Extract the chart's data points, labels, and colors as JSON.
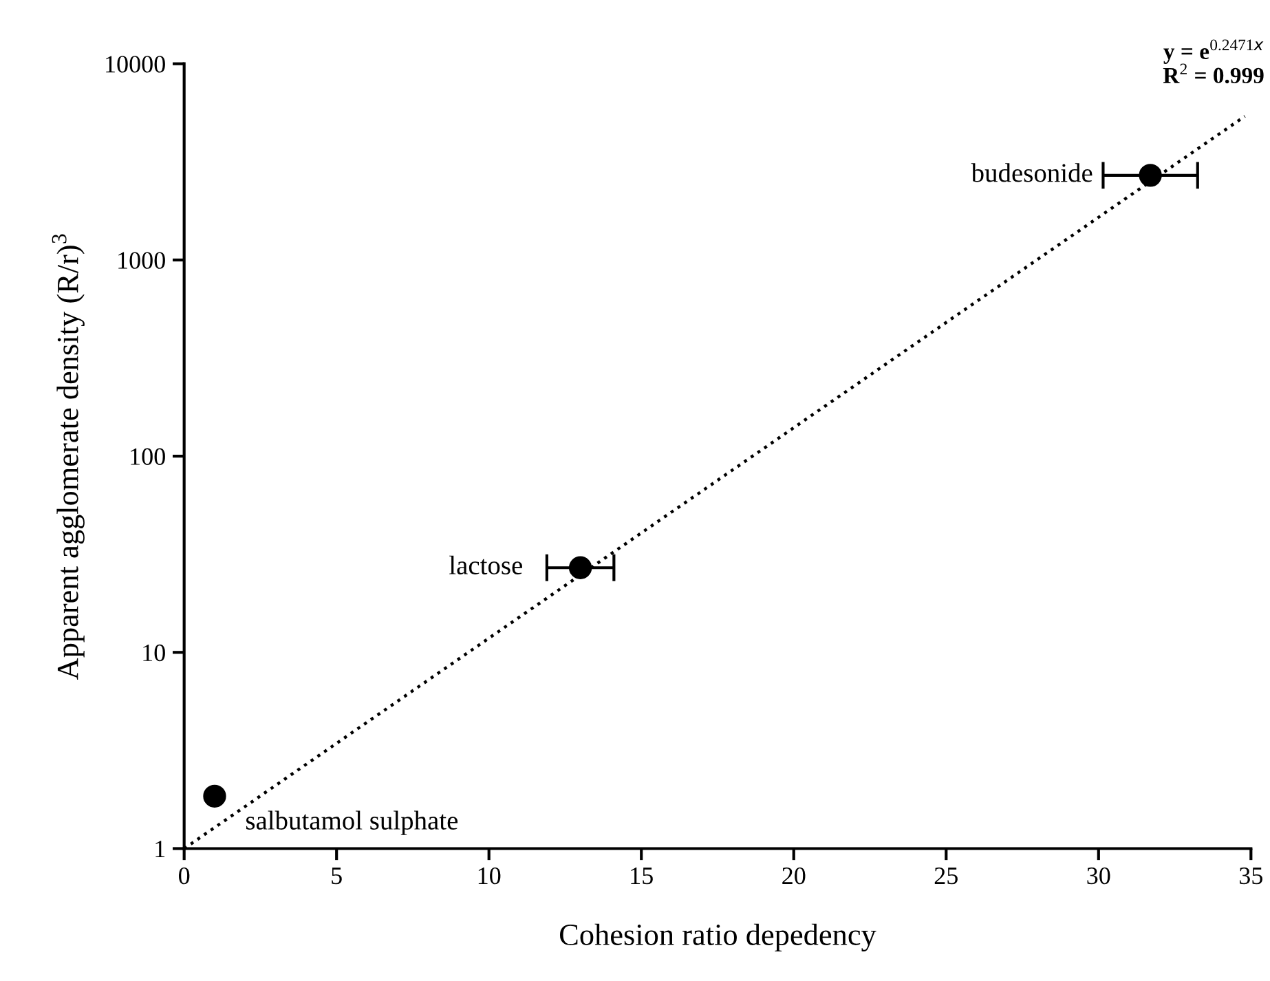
{
  "chart_data": {
    "type": "scatter",
    "xlabel": "Cohesion ratio depedency",
    "ylabel": "Apparent agglomerate density (R/r)$^{3}$",
    "log": "y",
    "xlim": [
      0,
      35
    ],
    "xticks": [
      0,
      5,
      10,
      15,
      20,
      25,
      30,
      35
    ],
    "ylim": [
      1,
      10000
    ],
    "yticks": [
      1,
      10,
      100,
      1000,
      10000
    ],
    "grid": false,
    "legend": false,
    "marker": "circle",
    "series": [
      {
        "color": "#000000",
        "x": [
          1.0,
          13.0,
          31.7
        ],
        "values": [
          1.85,
          27,
          2700
        ],
        "xerrors": [
          null,
          1.1,
          1.55
        ]
      },
      {
        "type": "line",
        "color": "#000000",
        "line_style": "dotted",
        "marker": "none",
        "x": [
          0,
          34.8
        ],
        "values": [
          1,
          5400
        ]
      }
    ],
    "annotations": [
      {
        "text": "salbutamol sulphate",
        "x": 1.0,
        "y": 1.85
      },
      {
        "text": "lactose",
        "x": 13.0,
        "y": 27
      },
      {
        "text": "budesonide",
        "x": 31.7,
        "y": 2700
      },
      "y = e$^{0.2471x}$\nR$^{2}$ = 0.999"
    ]
  }
}
